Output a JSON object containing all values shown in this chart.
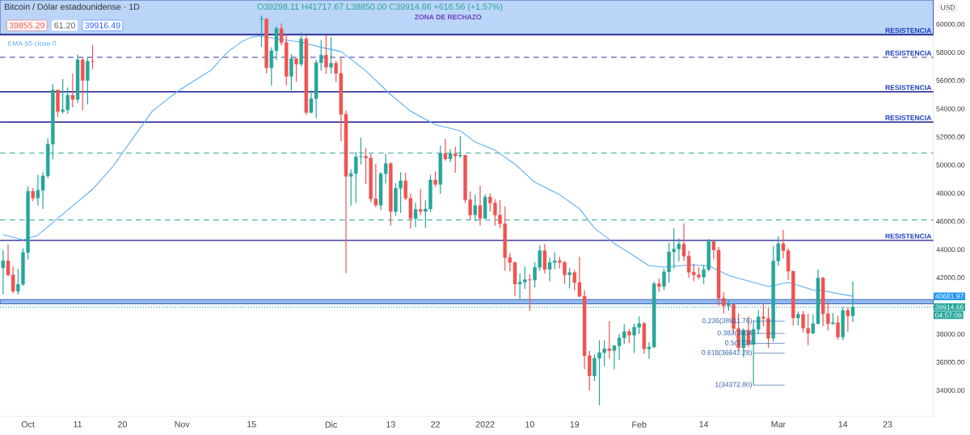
{
  "chart_data": {
    "type": "candlestick",
    "title": "Bitcoin / Dólar estadounidense · 1D",
    "subtitle": "O39298.11 H41717.67 L38850.00 C39914.66 +616.56 (+1.57%)",
    "ylabel": "USD",
    "legend": "top left",
    "xlim": [
      "2021-09-25T09:00",
      "2022-04-01T05:00"
    ],
    "ylim": [
      32150,
      61720
    ],
    "xticks": [
      {
        "value": "2021-10-01",
        "label": "Oct"
      },
      {
        "value": "2021-10-11",
        "label": "11"
      },
      {
        "value": "2021-10-20",
        "label": "20"
      },
      {
        "value": "2021-11-01",
        "label": "Nov"
      },
      {
        "value": "2021-11-15",
        "label": "15"
      },
      {
        "value": "2021-12-01",
        "label": "Dic"
      },
      {
        "value": "2021-12-13",
        "label": "13"
      },
      {
        "value": "2021-12-22",
        "label": "22"
      },
      {
        "value": "2022-01-01",
        "label": "2022"
      },
      {
        "value": "2022-01-10",
        "label": "10"
      },
      {
        "value": "2022-01-19",
        "label": "19"
      },
      {
        "value": "2022-02-01",
        "label": "Feb"
      },
      {
        "value": "2022-02-14",
        "label": "14"
      },
      {
        "value": "2022-03-01",
        "label": "Mar"
      },
      {
        "value": "2022-03-14",
        "label": "14"
      },
      {
        "value": "2022-03-23",
        "label": "23"
      }
    ],
    "yticks": [
      {
        "value": 34000,
        "label": "34000.00"
      },
      {
        "value": 36000,
        "label": "36000.00"
      },
      {
        "value": 38000,
        "label": "38000.00"
      },
      {
        "value": 42000,
        "label": "42000.00"
      },
      {
        "value": 44000,
        "label": "44000.00"
      },
      {
        "value": 46000,
        "label": "46000.00"
      },
      {
        "value": 48000,
        "label": "48000.00"
      },
      {
        "value": 50000,
        "label": "50000.00"
      },
      {
        "value": 52000,
        "label": "52000.00"
      },
      {
        "value": 54000,
        "label": "54000.00"
      },
      {
        "value": 56000,
        "label": "56000.00"
      },
      {
        "value": 58000,
        "label": "58000.00"
      },
      {
        "value": 60000,
        "label": "60000.00"
      }
    ],
    "x": [
      "2021-09-26",
      "2021-09-27",
      "2021-09-28",
      "2021-09-29",
      "2021-09-30",
      "2021-10-01",
      "2021-10-02",
      "2021-10-03",
      "2021-10-04",
      "2021-10-05",
      "2021-10-06",
      "2021-10-07",
      "2021-10-08",
      "2021-10-09",
      "2021-10-10",
      "2021-10-11",
      "2021-10-12",
      "2021-10-13",
      "2021-10-14",
      "2021-11-17",
      "2021-11-18",
      "2021-11-19",
      "2021-11-20",
      "2021-11-21",
      "2021-11-22",
      "2021-11-23",
      "2021-11-24",
      "2021-11-25",
      "2021-11-26",
      "2021-11-27",
      "2021-11-28",
      "2021-11-29",
      "2021-11-30",
      "2021-12-01",
      "2021-12-02",
      "2021-12-03",
      "2021-12-04",
      "2021-12-05",
      "2021-12-06",
      "2021-12-07",
      "2021-12-08",
      "2021-12-09",
      "2021-12-10",
      "2021-12-11",
      "2021-12-12",
      "2021-12-13",
      "2021-12-14",
      "2021-12-15",
      "2021-12-16",
      "2021-12-17",
      "2021-12-18",
      "2021-12-19",
      "2021-12-20",
      "2021-12-21",
      "2021-12-22",
      "2021-12-23",
      "2021-12-24",
      "2021-12-25",
      "2021-12-26",
      "2021-12-27",
      "2021-12-28",
      "2021-12-29",
      "2021-12-30",
      "2021-12-31",
      "2022-01-01",
      "2022-01-02",
      "2022-01-03",
      "2022-01-04",
      "2022-01-05",
      "2022-01-06",
      "2022-01-07",
      "2022-01-08",
      "2022-01-09",
      "2022-01-10",
      "2022-01-11",
      "2022-01-12",
      "2022-01-13",
      "2022-01-14",
      "2022-01-15",
      "2022-01-16",
      "2022-01-17",
      "2022-01-18",
      "2022-01-19",
      "2022-01-20",
      "2022-01-21",
      "2022-01-22",
      "2022-01-23",
      "2022-01-24",
      "2022-01-25",
      "2022-01-26",
      "2022-01-27",
      "2022-01-28",
      "2022-01-29",
      "2022-01-30",
      "2022-01-31",
      "2022-02-01",
      "2022-02-02",
      "2022-02-03",
      "2022-02-04",
      "2022-02-05",
      "2022-02-06",
      "2022-02-07",
      "2022-02-08",
      "2022-02-09",
      "2022-02-10",
      "2022-02-11",
      "2022-02-12",
      "2022-02-13",
      "2022-02-14",
      "2022-02-15",
      "2022-02-16",
      "2022-02-17",
      "2022-02-18",
      "2022-02-19",
      "2022-02-20",
      "2022-02-21",
      "2022-02-22",
      "2022-02-23",
      "2022-02-24",
      "2022-02-25",
      "2022-02-26",
      "2022-02-27",
      "2022-02-28",
      "2022-03-01",
      "2022-03-02",
      "2022-03-03",
      "2022-03-04",
      "2022-03-05",
      "2022-03-06",
      "2022-03-07",
      "2022-03-08",
      "2022-03-09",
      "2022-03-10",
      "2022-03-11",
      "2022-03-12",
      "2022-03-13",
      "2022-03-14",
      "2022-03-15",
      "2022-03-16"
    ],
    "ohlc": [
      [
        42700,
        43950,
        40800,
        43200
      ],
      [
        43200,
        44350,
        42100,
        42200
      ],
      [
        42200,
        42790,
        40900,
        41040
      ],
      [
        41040,
        42620,
        40800,
        41530
      ],
      [
        41530,
        44100,
        41420,
        43790
      ],
      [
        43790,
        48490,
        43290,
        48140
      ],
      [
        48140,
        48360,
        47440,
        47660
      ],
      [
        47660,
        49300,
        47100,
        48210
      ],
      [
        48210,
        49500,
        46890,
        49230
      ],
      [
        49230,
        51890,
        49070,
        51490
      ],
      [
        51490,
        55750,
        50400,
        55340
      ],
      [
        55340,
        55340,
        53400,
        53800
      ],
      [
        53800,
        56100,
        53650,
        53930
      ],
      [
        53930,
        55500,
        53650,
        54960
      ],
      [
        54960,
        56500,
        54100,
        54660
      ],
      [
        54660,
        57830,
        54420,
        57480
      ],
      [
        57480,
        57650,
        53900,
        56000
      ],
      [
        56000,
        57700,
        54300,
        57370
      ],
      [
        57370,
        58530,
        56820,
        57350
      ],
      [
        60340,
        60600,
        58380,
        60370
      ],
      [
        60370,
        60450,
        56500,
        56900
      ],
      [
        56900,
        58370,
        55630,
        58120
      ],
      [
        58120,
        59860,
        57460,
        59700
      ],
      [
        59700,
        60060,
        58500,
        58700
      ],
      [
        58700,
        59300,
        55650,
        56300
      ],
      [
        56300,
        57870,
        55300,
        57560
      ],
      [
        57560,
        57560,
        55900,
        57170
      ],
      [
        57170,
        59420,
        57000,
        58960
      ],
      [
        58960,
        59180,
        53570,
        53730
      ],
      [
        53730,
        55330,
        53670,
        54720
      ],
      [
        54720,
        57460,
        53330,
        57270
      ],
      [
        57270,
        58870,
        56700,
        57810
      ],
      [
        57810,
        59200,
        56470,
        56950
      ],
      [
        56950,
        59100,
        56470,
        57230
      ],
      [
        57230,
        57400,
        55900,
        56510
      ],
      [
        56510,
        57600,
        51680,
        53600
      ],
      [
        53600,
        53870,
        42330,
        49200
      ],
      [
        49200,
        49700,
        47100,
        49400
      ],
      [
        49400,
        50950,
        47300,
        50580
      ],
      [
        50580,
        51950,
        50040,
        50620
      ],
      [
        50620,
        51200,
        48650,
        50500
      ],
      [
        50500,
        50800,
        47350,
        47600
      ],
      [
        47600,
        50100,
        47000,
        47150
      ],
      [
        47150,
        49500,
        46800,
        49390
      ],
      [
        49390,
        50800,
        48700,
        50100
      ],
      [
        50100,
        50200,
        45700,
        46700
      ],
      [
        46700,
        48700,
        46400,
        48350
      ],
      [
        48350,
        49500,
        46600,
        48880
      ],
      [
        48880,
        49450,
        47500,
        47640
      ],
      [
        47640,
        47960,
        45500,
        46200
      ],
      [
        46200,
        47330,
        45600,
        46850
      ],
      [
        46850,
        48300,
        46450,
        46700
      ],
      [
        46700,
        47500,
        45550,
        46880
      ],
      [
        46880,
        49300,
        46650,
        48940
      ],
      [
        48940,
        49550,
        48450,
        48630
      ],
      [
        48630,
        51370,
        47950,
        50820
      ],
      [
        50820,
        51850,
        50300,
        50430
      ],
      [
        50430,
        51150,
        50200,
        50800
      ],
      [
        50800,
        51300,
        49450,
        50640
      ],
      [
        50640,
        52050,
        50500,
        50700
      ],
      [
        50700,
        50700,
        47300,
        47540
      ],
      [
        47540,
        48130,
        46100,
        46460
      ],
      [
        46460,
        47900,
        46000,
        47120
      ],
      [
        47120,
        48550,
        45700,
        46210
      ],
      [
        46210,
        47920,
        46210,
        47730
      ],
      [
        47730,
        47980,
        46700,
        47300
      ],
      [
        47300,
        47570,
        45700,
        46450
      ],
      [
        46450,
        47500,
        45500,
        45830
      ],
      [
        45830,
        47070,
        42500,
        43430
      ],
      [
        43430,
        43750,
        42450,
        43080
      ],
      [
        43080,
        43150,
        40700,
        41550
      ],
      [
        41550,
        42300,
        40500,
        41680
      ],
      [
        41680,
        42800,
        41200,
        41860
      ],
      [
        41860,
        42250,
        39650,
        41830
      ],
      [
        41830,
        43100,
        41300,
        42740
      ],
      [
        42740,
        44300,
        42500,
        43920
      ],
      [
        43920,
        44400,
        42300,
        42590
      ],
      [
        42590,
        43450,
        41750,
        43080
      ],
      [
        43080,
        43800,
        42600,
        43200
      ],
      [
        43200,
        43480,
        42650,
        43090
      ],
      [
        43090,
        43180,
        41550,
        42200
      ],
      [
        42200,
        42700,
        41250,
        42370
      ],
      [
        42370,
        42560,
        41100,
        41660
      ],
      [
        41660,
        43500,
        40600,
        40680
      ],
      [
        40680,
        41100,
        35500,
        36460
      ],
      [
        36460,
        36800,
        34000,
        35030
      ],
      [
        35030,
        36550,
        34650,
        36280
      ],
      [
        36280,
        37550,
        32950,
        36680
      ],
      [
        36680,
        37550,
        35700,
        36960
      ],
      [
        36960,
        38920,
        36250,
        36830
      ],
      [
        36830,
        37230,
        35500,
        37160
      ],
      [
        37160,
        38000,
        36150,
        37720
      ],
      [
        37720,
        38700,
        37300,
        38170
      ],
      [
        38170,
        38360,
        37350,
        37920
      ],
      [
        37920,
        38750,
        36650,
        38480
      ],
      [
        38480,
        39250,
        38000,
        38740
      ],
      [
        38740,
        38850,
        36600,
        36950
      ],
      [
        36950,
        37400,
        36250,
        37080
      ],
      [
        37080,
        41720,
        36990,
        41570
      ],
      [
        41570,
        41930,
        40990,
        41380
      ],
      [
        41380,
        42650,
        41120,
        42410
      ],
      [
        42410,
        44500,
        41650,
        43840
      ],
      [
        43840,
        45500,
        42650,
        44040
      ],
      [
        44040,
        44800,
        43150,
        44390
      ],
      [
        44390,
        45860,
        43200,
        43540
      ],
      [
        43540,
        43930,
        41990,
        42390
      ],
      [
        42390,
        43000,
        41750,
        42200
      ],
      [
        42200,
        42750,
        41880,
        42050
      ],
      [
        42050,
        42900,
        41580,
        42580
      ],
      [
        42580,
        44750,
        42450,
        44570
      ],
      [
        44570,
        44580,
        43320,
        43960
      ],
      [
        43960,
        44180,
        40000,
        40540
      ],
      [
        40540,
        40960,
        39450,
        40000
      ],
      [
        40000,
        40450,
        39650,
        40100
      ],
      [
        40100,
        40120,
        38000,
        38390
      ],
      [
        38390,
        39450,
        36800,
        37020
      ],
      [
        37020,
        38420,
        36350,
        38270
      ],
      [
        38270,
        39250,
        37060,
        37260
      ],
      [
        37260,
        38990,
        34372.8,
        38330
      ],
      [
        38330,
        39700,
        38000,
        39220
      ],
      [
        39220,
        40250,
        38550,
        39110
      ],
      [
        39110,
        39850,
        37000,
        37700
      ],
      [
        37700,
        44250,
        37450,
        43190
      ],
      [
        43190,
        44950,
        42850,
        44420
      ],
      [
        44420,
        45400,
        43350,
        43920
      ],
      [
        43920,
        44100,
        41850,
        42460
      ],
      [
        42460,
        42500,
        38600,
        39140
      ],
      [
        39140,
        39600,
        38600,
        39400
      ],
      [
        39400,
        39650,
        38100,
        38420
      ],
      [
        38420,
        39450,
        37200,
        38060
      ],
      [
        38060,
        39380,
        38000,
        38740
      ],
      [
        38740,
        42600,
        38700,
        41980
      ],
      [
        41980,
        42050,
        38550,
        39440
      ],
      [
        39440,
        40250,
        38250,
        38730
      ],
      [
        38730,
        39500,
        38650,
        38810
      ],
      [
        38810,
        39300,
        37600,
        37790
      ],
      [
        37790,
        39950,
        37570,
        39670
      ],
      [
        39670,
        39900,
        38150,
        39280
      ],
      [
        39298.11,
        41717.67,
        38850.0,
        39914.66
      ]
    ],
    "series": [
      {
        "name": "EMA 50 close 0",
        "type": "line",
        "color": "#5aaef5",
        "x": [
          "2021-09-26",
          "2021-09-30",
          "2021-10-03",
          "2021-10-06",
          "2021-10-10",
          "2021-10-14",
          "2021-10-18",
          "2021-10-22",
          "2021-10-26",
          "2021-10-29",
          "2021-10-31",
          "2021-11-03",
          "2021-11-07",
          "2021-11-10",
          "2021-11-13",
          "2021-11-15",
          "2021-11-17",
          "2021-11-21",
          "2021-11-25",
          "2021-11-29",
          "2021-12-03",
          "2021-12-08",
          "2021-12-13",
          "2021-12-17",
          "2021-12-22",
          "2021-12-27",
          "2021-12-30",
          "2022-01-03",
          "2022-01-07",
          "2022-01-11",
          "2022-01-16",
          "2022-01-20",
          "2022-01-23",
          "2022-01-27",
          "2022-01-31",
          "2022-02-03",
          "2022-02-06",
          "2022-02-11",
          "2022-02-15",
          "2022-02-19",
          "2022-02-24",
          "2022-02-27",
          "2022-03-03",
          "2022-03-08",
          "2022-03-10",
          "2022-03-16"
        ],
        "values": [
          45060,
          44690,
          45020,
          45910,
          47100,
          48280,
          49860,
          51840,
          53820,
          54650,
          55200,
          55890,
          56780,
          57970,
          58760,
          59090,
          59150,
          58910,
          58720,
          58360,
          58060,
          56680,
          55000,
          53820,
          52870,
          52430,
          51640,
          51050,
          50060,
          48780,
          47890,
          46900,
          45520,
          44430,
          43540,
          42850,
          42750,
          42910,
          42850,
          42160,
          41660,
          41370,
          41660,
          41130,
          41070,
          40680
        ]
      }
    ],
    "ref_lines": [
      {
        "axis": "y",
        "value": 59250,
        "label": "RESISTENCIA",
        "color": "#1a1a8c"
      },
      {
        "axis": "y",
        "value": 57650,
        "label": "RESISTENCIA",
        "color": "#3a2fa0",
        "line_style": "dashed"
      },
      {
        "axis": "y",
        "value": 55200,
        "label": "RESISTENCIA",
        "color": "#1a1a8c"
      },
      {
        "axis": "y",
        "value": 53050,
        "label": "RESISTENCIA",
        "color": "#1a1a8c"
      },
      {
        "axis": "y",
        "value": 50850,
        "color": "#26a69a",
        "line_style": "dashed"
      },
      {
        "axis": "y",
        "value": 46100,
        "color": "#26a69a",
        "line_style": "dashed"
      },
      {
        "axis": "y",
        "value": 44650,
        "label": "RESISTENCIA",
        "color": "#1a1a8c"
      },
      {
        "axis": "y",
        "value": 39914.66,
        "color": "#26a69a",
        "line_style": "dotted"
      }
    ],
    "bands": [
      {
        "axis": "y",
        "from": 59300,
        "to": 61720,
        "label": "ZONA DE RECHAZO",
        "color": "#bbd5f8"
      },
      {
        "axis": "y",
        "from": 40150,
        "to": 40450,
        "color": "#90bdf0"
      }
    ],
    "annotations": [
      "39855.29",
      "61.20",
      "39916.49",
      "04:57:09",
      "40681.97",
      "39914.66",
      {
        "text": "0.236(38911.76)",
        "x": "2022-02-24",
        "y": 38911.76
      },
      {
        "text": "0.382(3804",
        "x": "2022-02-24",
        "y": 38044.37
      },
      {
        "text": "0.5(3734",
        "x": "2022-02-24",
        "y": 37343.33
      },
      {
        "text": "0.618(36642.28)",
        "x": "2022-02-24",
        "y": 36642.28
      },
      {
        "text": "1(34372.80)",
        "x": "2022-02-24",
        "y": 34372.8
      }
    ]
  }
}
